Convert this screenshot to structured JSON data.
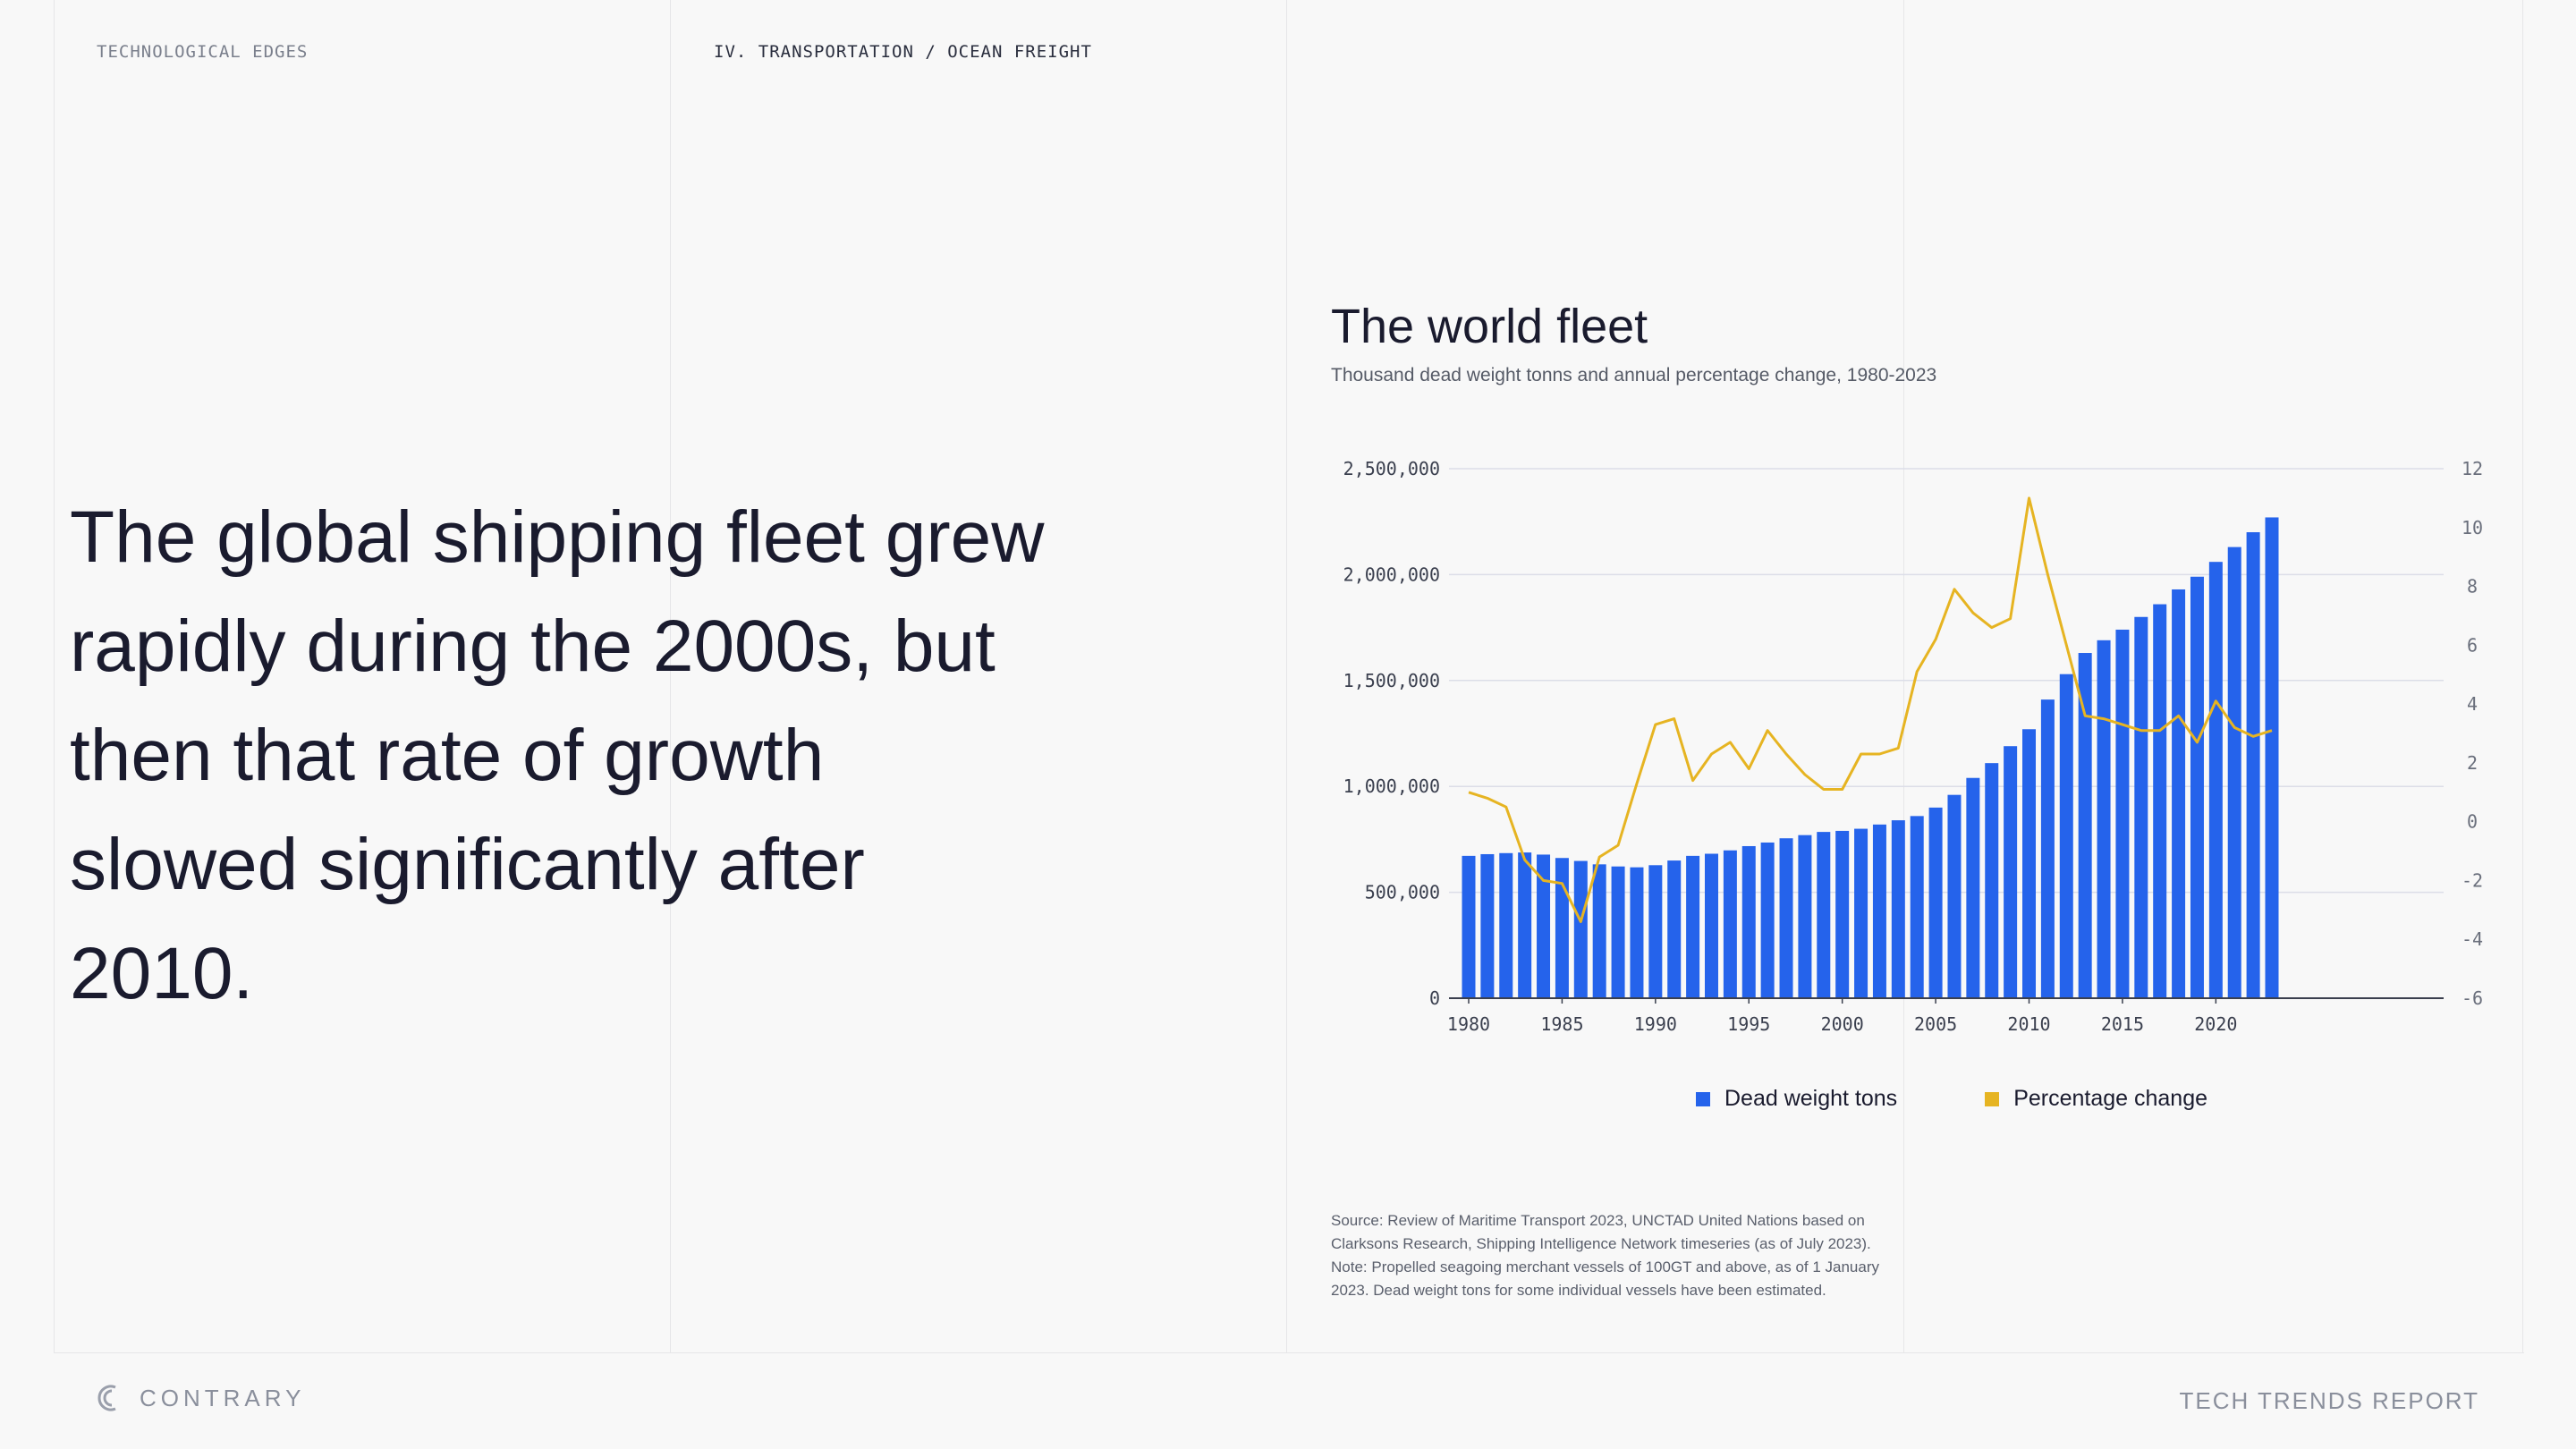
{
  "header": {
    "section_label": "TECHNOLOGICAL EDGES",
    "breadcrumb": "IV. TRANSPORTATION / OCEAN FREIGHT"
  },
  "headline": "The global shipping fleet grew rapidly during the 2000s, but then that rate of growth slowed significantly after 2010.",
  "colors": {
    "bar": "#2563eb",
    "line": "#e6b422",
    "grid": "#dcdee8"
  },
  "chart_data": {
    "type": "bar",
    "title": "The world fleet",
    "subtitle": "Thousand dead weight tonns and annual percentage change, 1980-2023",
    "x": [
      1980,
      1981,
      1982,
      1983,
      1984,
      1985,
      1986,
      1987,
      1988,
      1989,
      1990,
      1991,
      1992,
      1993,
      1994,
      1995,
      1996,
      1997,
      1998,
      1999,
      2000,
      2001,
      2002,
      2003,
      2004,
      2005,
      2006,
      2007,
      2008,
      2009,
      2010,
      2011,
      2012,
      2013,
      2014,
      2015,
      2016,
      2017,
      2018,
      2019,
      2020,
      2021,
      2022,
      2023
    ],
    "x_ticks": [
      "1980",
      "1985",
      "1990",
      "1995",
      "2000",
      "2005",
      "2010",
      "2015",
      "2020"
    ],
    "y_left_ticks": [
      "0",
      "500,000",
      "1,000,000",
      "1,500,000",
      "2,000,000",
      "2,500,000"
    ],
    "y_left_range": [
      0,
      2500000
    ],
    "y_right_ticks": [
      "-6",
      "-4",
      "-2",
      "0",
      "2",
      "4",
      "6",
      "8",
      "10",
      "12"
    ],
    "y_right_range": [
      -6,
      12
    ],
    "grid": true,
    "legend_position": "bottom",
    "series": [
      {
        "name": "Dead weight tons",
        "type": "bar",
        "axis": "left",
        "values": [
          672000,
          680000,
          685000,
          688000,
          678000,
          662000,
          648000,
          632000,
          622000,
          618000,
          628000,
          650000,
          672000,
          682000,
          698000,
          718000,
          735000,
          755000,
          770000,
          785000,
          790000,
          800000,
          820000,
          840000,
          860000,
          900000,
          960000,
          1040000,
          1110000,
          1190000,
          1270000,
          1410000,
          1530000,
          1630000,
          1690000,
          1740000,
          1800000,
          1860000,
          1930000,
          1990000,
          2060000,
          2130000,
          2200000,
          2270000
        ]
      },
      {
        "name": "Percentage change",
        "type": "line",
        "axis": "right",
        "values": [
          1.0,
          0.8,
          0.5,
          -1.3,
          -2.0,
          -2.1,
          -3.4,
          -1.2,
          -0.8,
          1.3,
          3.3,
          3.5,
          1.4,
          2.3,
          2.7,
          1.8,
          3.1,
          2.3,
          1.6,
          1.1,
          1.1,
          2.3,
          2.3,
          2.5,
          5.1,
          6.2,
          7.9,
          7.1,
          6.6,
          6.9,
          11.0,
          8.4,
          6.0,
          3.6,
          3.5,
          3.3,
          3.1,
          3.1,
          3.6,
          2.7,
          4.1,
          3.2,
          2.9,
          3.1
        ]
      }
    ]
  },
  "source_note": "Source: Review of Maritime Transport 2023, UNCTAD United Nations based on Clarksons Research, Shipping Intelligence Network timeseries (as of July 2023). Note: Propelled seagoing merchant vessels of 100GT and above, as of 1 January 2023. Dead weight tons for some individual vessels have been estimated.",
  "footer": {
    "brand": "CONTRARY",
    "report": "TECH TRENDS REPORT"
  }
}
